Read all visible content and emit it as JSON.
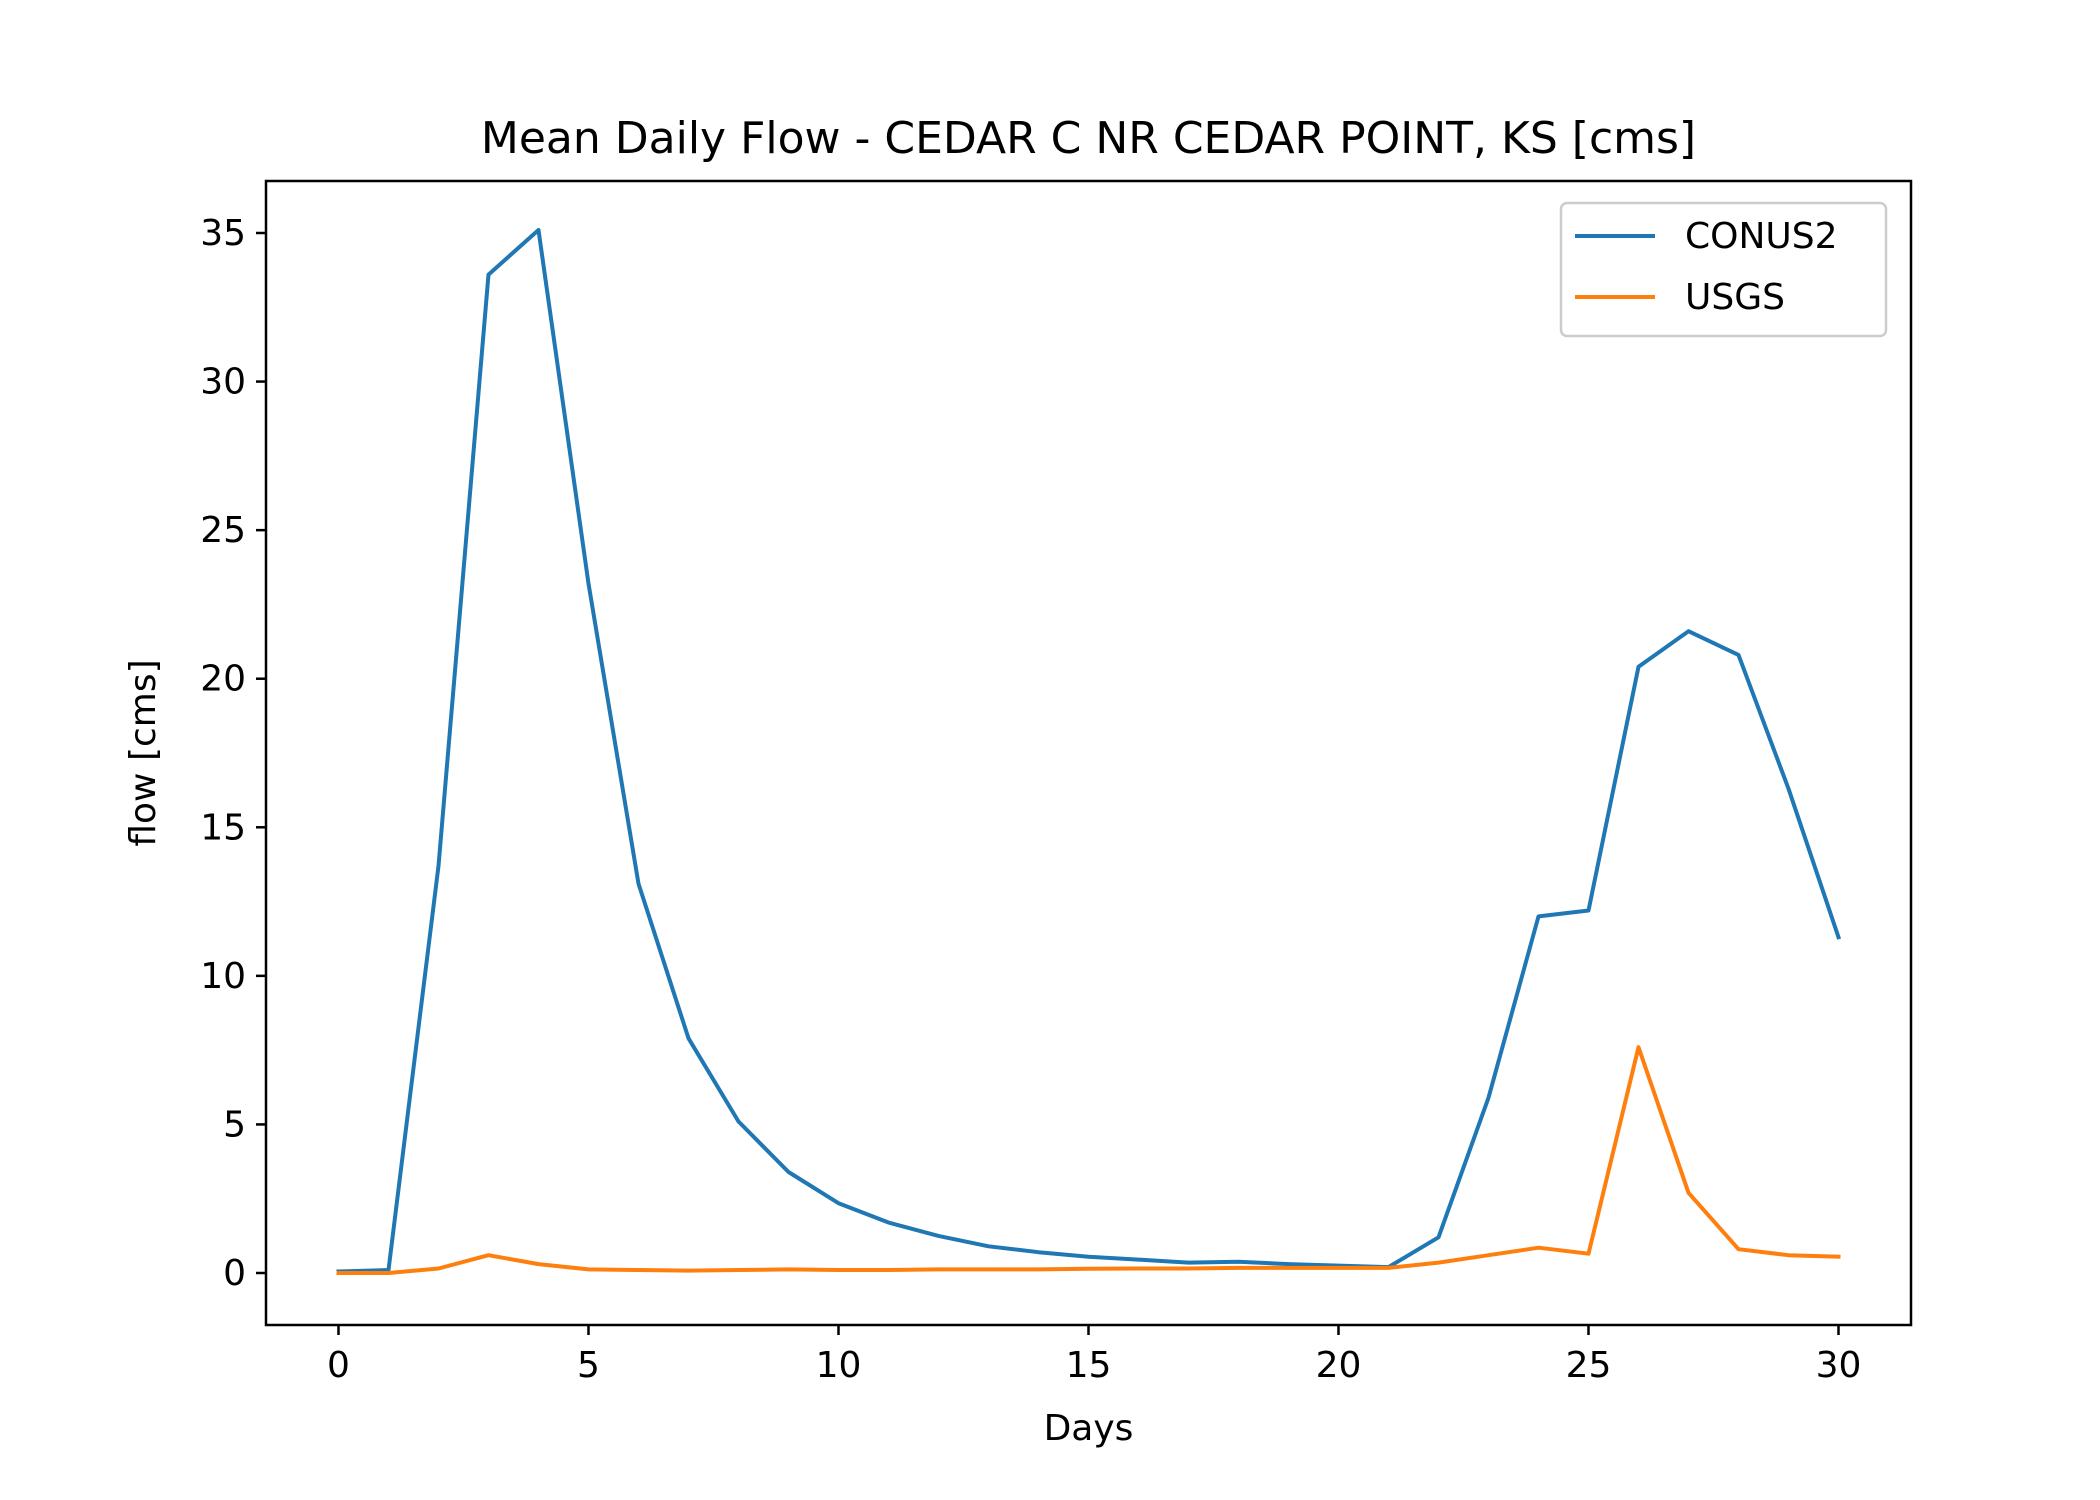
{
  "chart_data": {
    "type": "line",
    "title": "Mean Daily Flow - CEDAR C NR CEDAR POINT, KS [cms]",
    "xlabel": "Days",
    "ylabel": "flow [cms]",
    "xlim": [
      -1.45,
      31.45
    ],
    "ylim": [
      -1.75,
      36.75
    ],
    "xticks": [
      0,
      5,
      10,
      15,
      20,
      25,
      30
    ],
    "yticks": [
      0,
      5,
      10,
      15,
      20,
      25,
      30,
      35
    ],
    "grid": false,
    "legend_position": "top-right",
    "x": [
      0,
      1,
      2,
      3,
      4,
      5,
      6,
      7,
      8,
      9,
      10,
      11,
      12,
      13,
      14,
      15,
      16,
      17,
      18,
      19,
      20,
      21,
      22,
      23,
      24,
      25,
      26,
      27,
      28,
      29,
      30
    ],
    "series": [
      {
        "name": "CONUS2",
        "color": "#1f77b4",
        "values": [
          0.05,
          0.1,
          13.7,
          33.6,
          35.1,
          23.2,
          13.1,
          7.9,
          5.1,
          3.4,
          2.35,
          1.7,
          1.25,
          0.9,
          0.7,
          0.55,
          0.45,
          0.35,
          0.38,
          0.3,
          0.25,
          0.2,
          1.2,
          5.9,
          12.0,
          12.2,
          20.4,
          21.6,
          20.8,
          16.3,
          11.3
        ]
      },
      {
        "name": "USGS",
        "color": "#ff7f0e",
        "values": [
          0.0,
          0.0,
          0.15,
          0.6,
          0.3,
          0.12,
          0.1,
          0.08,
          0.1,
          0.12,
          0.1,
          0.1,
          0.12,
          0.12,
          0.12,
          0.14,
          0.15,
          0.15,
          0.17,
          0.17,
          0.17,
          0.17,
          0.35,
          0.6,
          0.85,
          0.65,
          7.6,
          2.7,
          0.8,
          0.6,
          0.55
        ]
      }
    ]
  }
}
